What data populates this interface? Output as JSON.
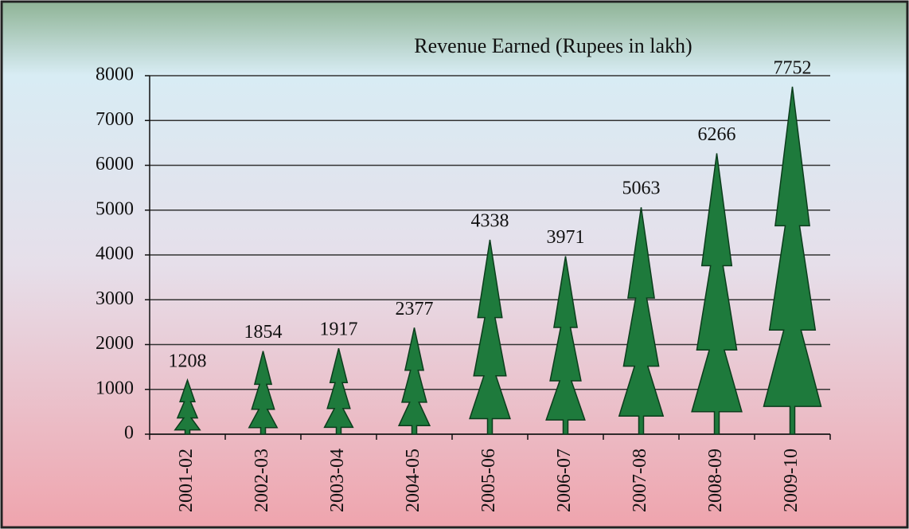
{
  "chart_data": {
    "type": "pictograph",
    "title": "Revenue Earned (Rupees in lakh)",
    "categories": [
      "2001-02",
      "2002-03",
      "2003-04",
      "2004-05",
      "2005-06",
      "2006-07",
      "2007-08",
      "2008-09",
      "2009-10"
    ],
    "values": [
      1208,
      1854,
      1917,
      2377,
      4338,
      3971,
      5063,
      6266,
      7752
    ],
    "color": "#1e7a3c",
    "ylim": [
      0,
      8000
    ],
    "yticks": [
      0,
      1000,
      2000,
      3000,
      4000,
      5000,
      6000,
      7000,
      8000
    ],
    "grid": true
  }
}
